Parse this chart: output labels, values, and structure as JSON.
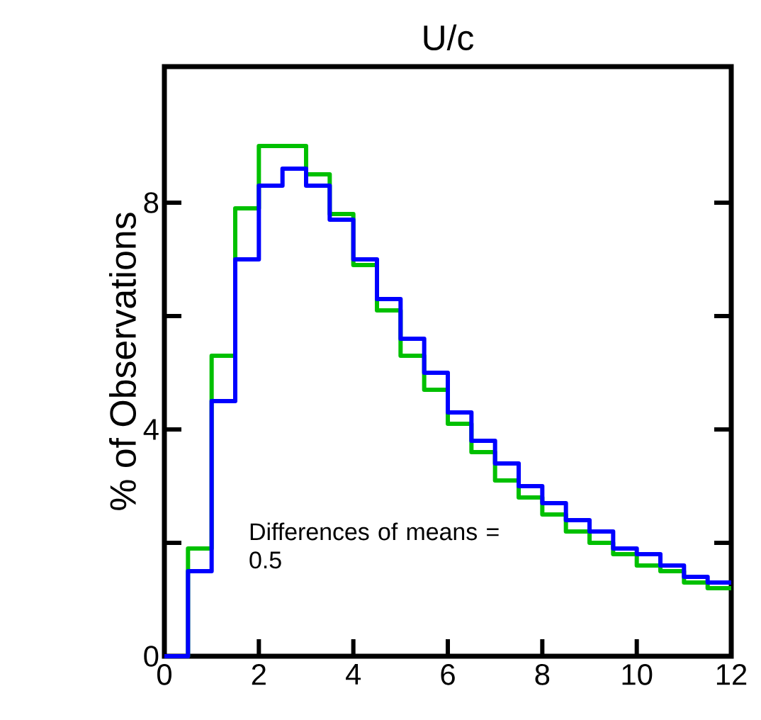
{
  "chart_data": {
    "type": "histogram",
    "title": "U/c",
    "ylabel": "% of Observations",
    "bins": [
      0,
      0.5,
      1,
      1.5,
      2,
      2.5,
      3,
      3.5,
      4,
      4.5,
      5,
      5.5,
      6,
      6.5,
      7,
      7.5,
      8,
      8.5,
      9,
      9.5,
      10,
      10.5,
      11,
      11.5,
      12
    ],
    "series": [
      {
        "color": "#00c000",
        "values": [
          0,
          1.9,
          5.3,
          7.9,
          9.0,
          9.0,
          8.5,
          7.8,
          6.9,
          6.1,
          5.3,
          4.7,
          4.1,
          3.6,
          3.1,
          2.8,
          2.5,
          2.2,
          2.0,
          1.8,
          1.6,
          1.5,
          1.3,
          1.2
        ]
      },
      {
        "color": "#0000ff",
        "values": [
          0,
          1.5,
          4.5,
          7.0,
          8.3,
          8.6,
          8.3,
          7.7,
          7.0,
          6.3,
          5.6,
          5.0,
          4.3,
          3.8,
          3.4,
          3.0,
          2.7,
          2.4,
          2.2,
          1.9,
          1.8,
          1.6,
          1.4,
          1.3
        ]
      }
    ],
    "xlim": [
      0,
      12
    ],
    "xticks": [
      0,
      2,
      4,
      6,
      8,
      10,
      12
    ],
    "ylim": [
      0,
      10.4
    ],
    "yticks": [
      0,
      {
        "value": 2,
        "label": null
      },
      4,
      {
        "value": 6,
        "label": null
      },
      8
    ],
    "annotations": [
      "Differences of means = 0.5"
    ]
  }
}
